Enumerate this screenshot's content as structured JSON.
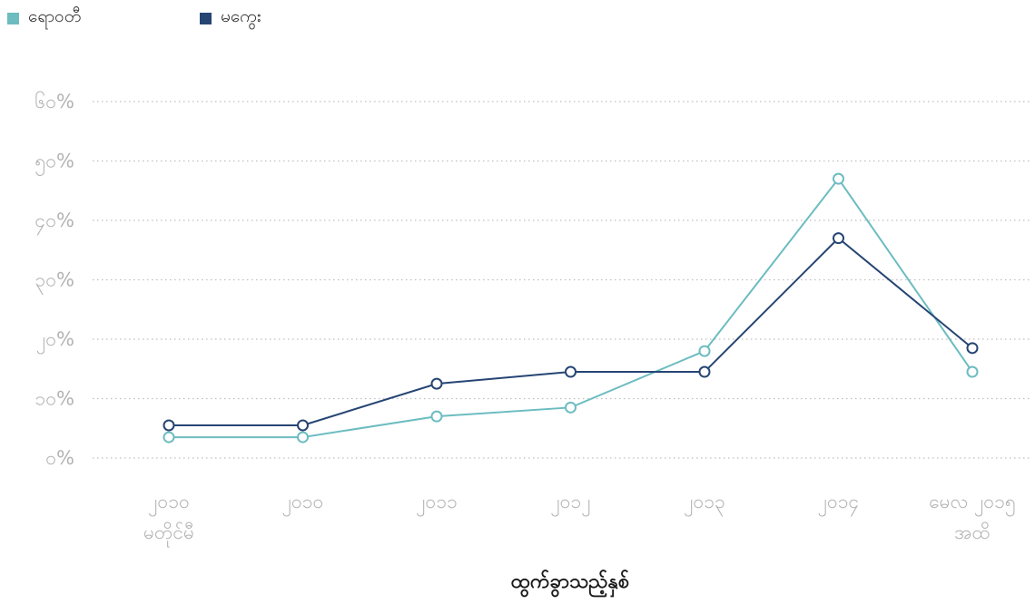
{
  "legend": {
    "items": [
      {
        "label": "ရောဝတီ",
        "color": "#6cbcc0"
      },
      {
        "label": "မကွေး",
        "color": "#264573"
      }
    ]
  },
  "chart_data": {
    "type": "line",
    "categories": [
      [
        "၂၀၁၀",
        "မတိုင်မီ"
      ],
      [
        "၂၀၁၀"
      ],
      [
        "၂၀၁၁"
      ],
      [
        "၂၀၁၂"
      ],
      [
        "၂၀၁၃"
      ],
      [
        "၂၀၁၄"
      ],
      [
        "မေလ ၂၀၁၅",
        "အထိ"
      ]
    ],
    "series": [
      {
        "name": "ရောဝတီ",
        "color": "#6cbcc0",
        "values": [
          3.5,
          3.5,
          7,
          8.5,
          18,
          47,
          14.5
        ]
      },
      {
        "name": "မကွေး",
        "color": "#264573",
        "values": [
          5.5,
          5.5,
          12.5,
          14.5,
          14.5,
          37,
          18.5
        ]
      }
    ],
    "y_ticks": [
      {
        "value": 0,
        "label": "၀%"
      },
      {
        "value": 10,
        "label": "၁၀%"
      },
      {
        "value": 20,
        "label": "၂၀%"
      },
      {
        "value": 30,
        "label": "၃၀%"
      },
      {
        "value": 40,
        "label": "၄၀%"
      },
      {
        "value": 50,
        "label": "၅၀%"
      },
      {
        "value": 60,
        "label": "၆၀%"
      }
    ],
    "ylim": [
      0,
      60
    ],
    "xlabel": "ထွက်ခွာသည့်နှစ်",
    "ylabel": "",
    "grid": true,
    "legend_position": "top-left"
  }
}
